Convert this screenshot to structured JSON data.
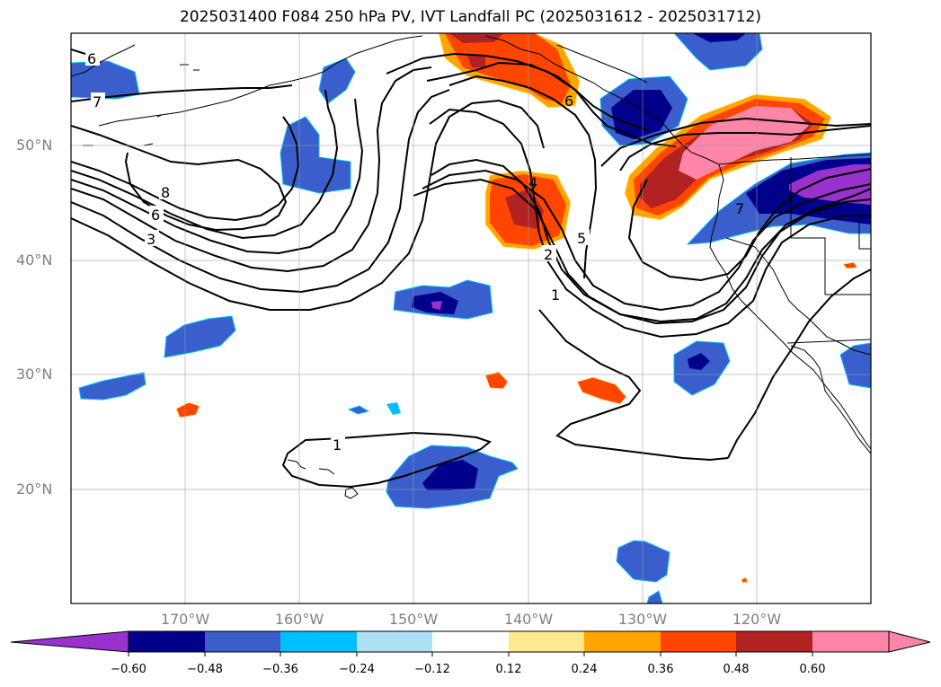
{
  "title": "2025031400 F084 250 hPa PV, IVT Landfall PC (2025031612 - 2025031712)",
  "axes": {
    "lat_labels": [
      "50°N",
      "40°N",
      "30°N",
      "20°N"
    ],
    "lon_labels": [
      "170°W",
      "160°W",
      "150°W",
      "140°W",
      "130°W",
      "120°W"
    ]
  },
  "contour_labels": [
    "6",
    "7",
    "8",
    "6",
    "3",
    "4",
    "2",
    "1",
    "5",
    "6",
    "7",
    "1"
  ],
  "colorbar": {
    "ticks": [
      "−0.60",
      "−0.48",
      "−0.36",
      "−0.24",
      "−0.12",
      "0.12",
      "0.24",
      "0.36",
      "0.48",
      "0.60"
    ],
    "colors": [
      "#9932CC",
      "#00008B",
      "#3A5FCD",
      "#00BFFF",
      "#ADDFF5",
      "#FFFFFF",
      "#FFE98F",
      "#FFA500",
      "#FF4500",
      "#B22222",
      "#FF85A8"
    ]
  },
  "chart_data": {
    "type": "map",
    "projection": "lat-lon",
    "lon_range": [
      "180°W",
      "110°W"
    ],
    "lat_range": [
      "10°N",
      "60°N"
    ],
    "grid": true,
    "fields": [
      "250 hPa PV (black contours)",
      "IVT Landfall PC (shaded)"
    ],
    "pv_contour_levels": [
      1,
      2,
      3,
      4,
      5,
      6,
      7,
      8
    ],
    "shading_levels": [
      -0.6,
      -0.48,
      -0.36,
      -0.24,
      -0.12,
      0.12,
      0.24,
      0.36,
      0.48,
      0.6
    ]
  }
}
